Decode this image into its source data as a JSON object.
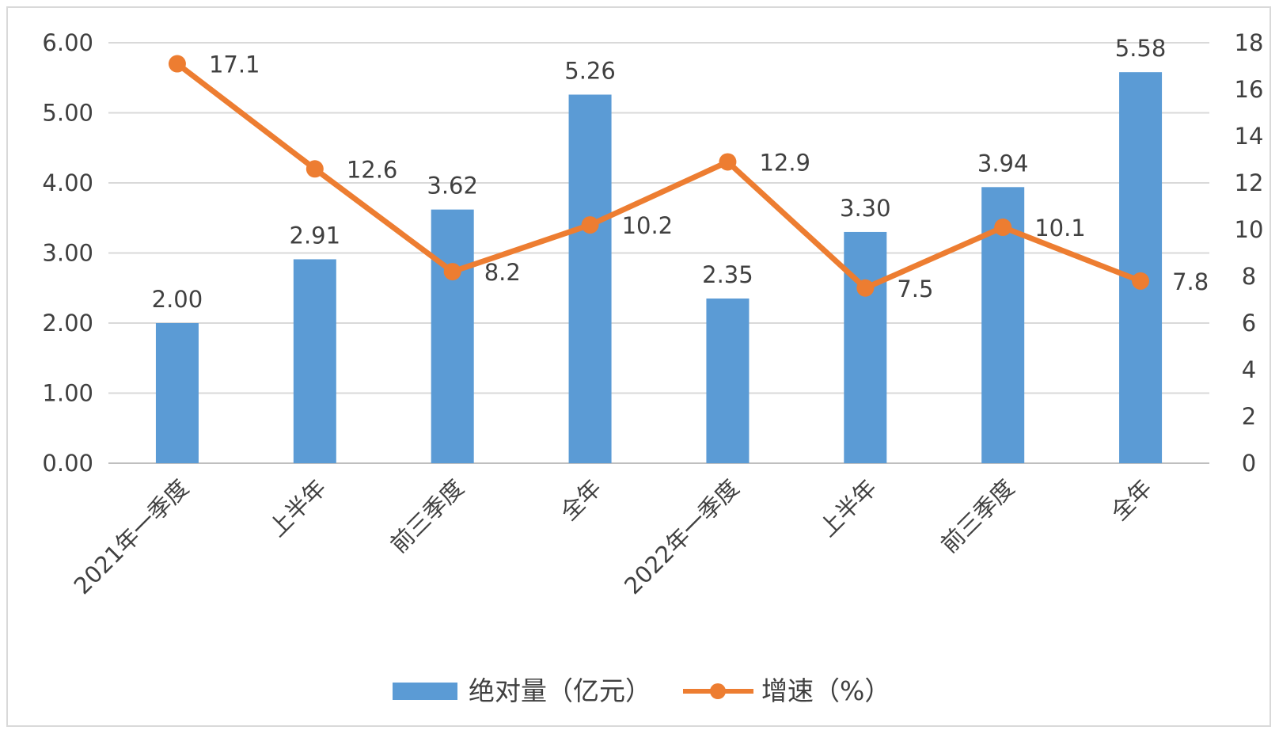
{
  "chart_data": {
    "type": "bar+line",
    "categories": [
      "2021年一季度",
      "上半年",
      "前三季度",
      "全年",
      "2022年一季度",
      "上半年",
      "前三季度",
      "全年"
    ],
    "series": [
      {
        "name": "绝对量（亿元）",
        "type": "bar",
        "axis": "left",
        "values": [
          2.0,
          2.91,
          3.62,
          5.26,
          2.35,
          3.3,
          3.94,
          5.58
        ],
        "labels": [
          "2.00",
          "2.91",
          "3.62",
          "5.26",
          "2.35",
          "3.30",
          "3.94",
          "5.58"
        ],
        "color": "#5B9BD5"
      },
      {
        "name": "增速（%）",
        "type": "line",
        "axis": "right",
        "values": [
          17.1,
          12.6,
          8.2,
          10.2,
          12.9,
          7.5,
          10.1,
          7.8
        ],
        "labels": [
          "17.1",
          "12.6",
          "8.2",
          "10.2",
          "12.9",
          "7.5",
          "10.1",
          "7.8"
        ],
        "color": "#ED7D31"
      }
    ],
    "y_left": {
      "min": 0,
      "max": 6,
      "step": 1,
      "ticks": [
        "0.00",
        "1.00",
        "2.00",
        "3.00",
        "4.00",
        "5.00",
        "6.00"
      ]
    },
    "y_right": {
      "min": 0,
      "max": 18,
      "step": 2,
      "ticks": [
        "0",
        "2",
        "4",
        "6",
        "8",
        "10",
        "12",
        "14",
        "16",
        "18"
      ]
    },
    "grid": true,
    "legend": "bottom"
  }
}
